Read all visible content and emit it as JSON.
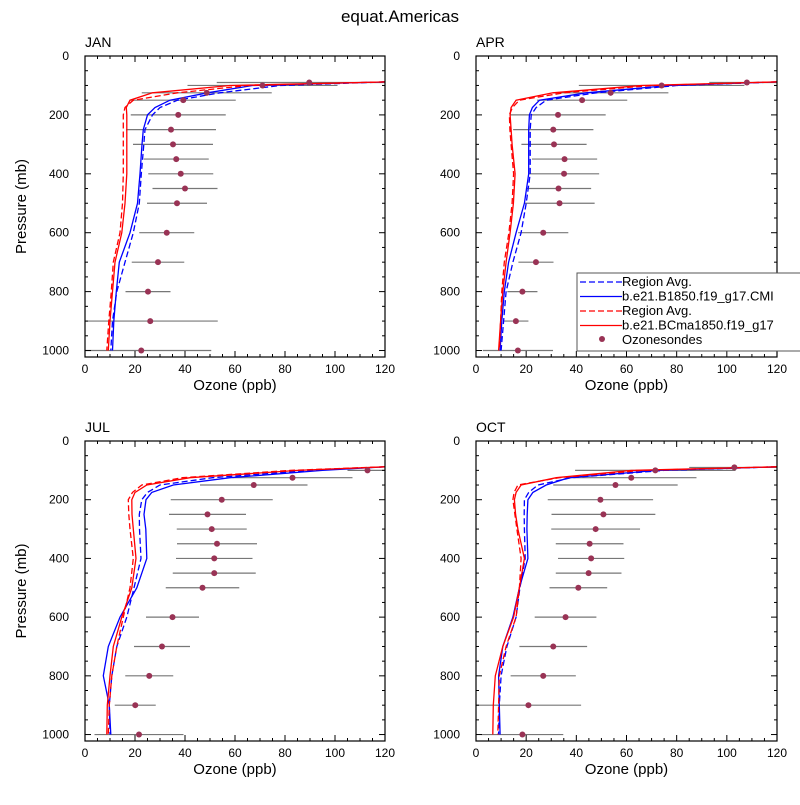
{
  "chart_data": {
    "type": "line",
    "title": "equat.Americas",
    "xlabel": "Ozone (ppb)",
    "ylabel": "Pressure (mb)",
    "xlim": [
      0,
      120
    ],
    "ylim": [
      1000,
      0
    ],
    "xticks": [
      "0",
      "20",
      "40",
      "60",
      "80",
      "100",
      "120"
    ],
    "yticks": [
      "0",
      "200",
      "400",
      "600",
      "800",
      "1000"
    ],
    "legend": {
      "placement": "panel APR, lower-right",
      "entries": [
        {
          "label": "Region Avg.",
          "style": "dashed",
          "color": "#0000ff"
        },
        {
          "label": "b.e21.B1850.f19_g17.CMI",
          "style": "solid",
          "color": "#0000ff"
        },
        {
          "label": "Region Avg.",
          "style": "dashed",
          "color": "#ff0000"
        },
        {
          "label": "b.e21.BCma1850.f19_g17",
          "style": "solid",
          "color": "#ff0000"
        },
        {
          "label": "Ozonesondes",
          "style": "marker",
          "color": "#993355"
        }
      ]
    },
    "model_pressure": [
      88,
      100,
      125,
      150,
      175,
      200,
      250,
      300,
      400,
      500,
      600,
      700,
      800,
      900,
      1000
    ],
    "panels": [
      {
        "title": "JAN",
        "obs_pressure": [
          90,
          100,
          125,
          150,
          200,
          250,
          300,
          350,
          400,
          450,
          500,
          600,
          700,
          800,
          900,
          1000
        ],
        "obs_mean": [
          89.7,
          71,
          48.7,
          39.3,
          37.3,
          34.4,
          35.2,
          36.5,
          38.3,
          40,
          36.8,
          32.7,
          29.2,
          25.2,
          26.1,
          22.5
        ],
        "obs_std": [
          37,
          30,
          26,
          21,
          19,
          18,
          16,
          13,
          13,
          13,
          12,
          11,
          10.5,
          9,
          27,
          28
        ],
        "series": [
          {
            "name": "Region Avg. (B1850)",
            "color": "#0000ff",
            "style": "dashed",
            "values": [
              120,
              78,
              54,
              37,
              30,
              27,
              24,
              23.5,
              22.5,
              21.7,
              19.3,
              16,
              12.7,
              11,
              10.3
            ]
          },
          {
            "name": "b.e21.B1850.f19_g17.CMI",
            "color": "#0000ff",
            "style": "solid",
            "values": [
              120,
              67,
              49,
              34,
              28,
              25,
              23.3,
              22.8,
              22,
              21,
              18,
              13.7,
              12.5,
              11.5,
              11
            ]
          },
          {
            "name": "Region Avg. (BCma1850)",
            "color": "#ff0000",
            "style": "dashed",
            "values": [
              120,
              65,
              37,
              19.3,
              16,
              15.3,
              15.3,
              15.3,
              15.3,
              15,
              14,
              11.3,
              10.5,
              9.5,
              8.7
            ]
          },
          {
            "name": "b.e21.BCma1850.f19_g17",
            "color": "#ff0000",
            "style": "solid",
            "values": [
              120,
              58,
              27,
              18,
              16.5,
              16.7,
              16.7,
              16.7,
              16.7,
              16,
              14.7,
              12,
              11,
              10,
              9.3
            ]
          }
        ]
      },
      {
        "title": "APR",
        "obs_pressure": [
          90,
          100,
          125,
          150,
          200,
          250,
          300,
          350,
          400,
          450,
          500,
          600,
          700,
          800,
          900,
          1000
        ],
        "obs_mean": [
          108,
          74,
          53.7,
          42.3,
          32.7,
          30.8,
          31.1,
          35.3,
          35.1,
          32.9,
          33.3,
          26.8,
          23.9,
          18.5,
          15.9,
          16.7
        ],
        "obs_std": [
          15,
          33,
          23,
          18,
          19,
          16,
          13,
          13,
          14,
          13,
          14,
          10,
          7,
          6,
          5,
          14
        ],
        "series": [
          {
            "name": "Region Avg. (B1850)",
            "color": "#0000ff",
            "style": "dashed",
            "values": [
              120,
              80,
              48,
              28,
              24,
              22,
              21.6,
              21.6,
              21.6,
              20,
              18,
              14.7,
              12,
              11,
              10
            ]
          },
          {
            "name": "b.e21.B1850.f19_g17.CMI",
            "color": "#0000ff",
            "style": "solid",
            "values": [
              120,
              77,
              44,
              25.3,
              22.5,
              21.3,
              21,
              21,
              21,
              19.3,
              16,
              13,
              11.3,
              10.3,
              9.6
            ]
          },
          {
            "name": "Region Avg. (BCma1850)",
            "color": "#ff0000",
            "style": "dashed",
            "values": [
              120,
              70,
              35,
              17.3,
              14.5,
              13.3,
              13.5,
              14,
              15,
              14.4,
              13.1,
              11.3,
              10.3,
              9.8,
              9.3
            ]
          },
          {
            "name": "b.e21.BCma1850.f19_g17",
            "color": "#ff0000",
            "style": "solid",
            "values": [
              120,
              66,
              30.7,
              16,
              14,
              13.6,
              14,
              14.4,
              15.6,
              14.9,
              13.6,
              12,
              10.7,
              9.8,
              9
            ]
          }
        ]
      },
      {
        "title": "JUL",
        "obs_pressure": [
          100,
          125,
          150,
          200,
          250,
          300,
          350,
          400,
          450,
          500,
          600,
          700,
          800,
          900,
          1000
        ],
        "obs_mean": [
          113,
          83,
          67.5,
          54.7,
          49,
          50.7,
          52.8,
          51.7,
          51.7,
          47,
          35,
          30.8,
          25.7,
          20.1,
          21.6
        ],
        "obs_std": [
          8,
          24,
          21.5,
          20.4,
          15.4,
          14,
          16,
          15.3,
          16.6,
          14.7,
          10.6,
          11.2,
          9.6,
          8.2,
          17.8
        ],
        "series": [
          {
            "name": "Region Avg. (B1850)",
            "color": "#0000ff",
            "style": "dashed",
            "values": [
              120,
              90,
              51,
              30,
              25,
              22.7,
              21.7,
              21.8,
              22.4,
              19.6,
              16.7,
              12.7,
              10.7,
              9.7,
              10
            ]
          },
          {
            "name": "b.e21.B1850.f19_g17.CMI",
            "color": "#0000ff",
            "style": "solid",
            "values": [
              120,
              95,
              58,
              35.3,
              26.7,
              24.4,
              23.6,
              24.3,
              24.7,
              20.7,
              14,
              9.3,
              7.3,
              9.7,
              10.3
            ]
          },
          {
            "name": "Region Avg. (BCma1850)",
            "color": "#ff0000",
            "style": "dashed",
            "values": [
              120,
              82,
              39,
              22.7,
              19,
              17.3,
              17.5,
              18,
              19.3,
              18,
              15.3,
              12.7,
              10.7,
              9.7,
              9.3
            ]
          },
          {
            "name": "b.e21.BCma1850.f19_g17",
            "color": "#ff0000",
            "style": "solid",
            "values": [
              120,
              85,
              42,
              24.7,
              20,
              18.7,
              18.8,
              19.3,
              20.4,
              18.7,
              14.7,
              11.3,
              10,
              8.9,
              8.7
            ]
          }
        ]
      },
      {
        "title": "OCT",
        "obs_pressure": [
          90,
          100,
          125,
          150,
          200,
          250,
          300,
          350,
          400,
          450,
          500,
          600,
          700,
          800,
          900,
          1000
        ],
        "obs_mean": [
          103,
          71.5,
          61.9,
          55.6,
          49.6,
          50.8,
          47.7,
          45.3,
          45.9,
          44.9,
          40.8,
          35.7,
          30.8,
          26.8,
          20.9,
          18.5
        ],
        "obs_std": [
          18,
          32,
          26,
          24.8,
          21,
          20.7,
          17.7,
          13.5,
          13.2,
          13.1,
          11.5,
          12.3,
          13.5,
          13,
          21,
          16.3
        ],
        "series": [
          {
            "name": "Region Avg. (B1850)",
            "color": "#0000ff",
            "style": "dashed",
            "values": [
              120,
              75,
              38,
              24.7,
              21,
              19.3,
              19.2,
              19.3,
              19.6,
              17.5,
              16,
              12.3,
              10,
              9.3,
              9
            ]
          },
          {
            "name": "b.e21.B1850.f19_g17.CMI",
            "color": "#0000ff",
            "style": "solid",
            "values": [
              120,
              72,
              37,
              28,
              22.7,
              20.7,
              20.4,
              20.3,
              20.7,
              17.3,
              14.7,
              10.7,
              9,
              9.3,
              9.6
            ]
          },
          {
            "name": "Region Avg. (BCma1850)",
            "color": "#ff0000",
            "style": "dashed",
            "values": [
              120,
              66,
              33,
              16.7,
              15.2,
              14.7,
              15.5,
              16.3,
              18,
              17.3,
              16,
              12,
              9.3,
              9,
              8.7
            ]
          },
          {
            "name": "b.e21.BCma1850.f19_g17",
            "color": "#ff0000",
            "style": "solid",
            "values": [
              120,
              62,
              32,
              18,
              16,
              15.3,
              15.8,
              16.7,
              19.3,
              17.3,
              15,
              10.7,
              7.7,
              6.9,
              6.7
            ]
          }
        ]
      }
    ]
  }
}
